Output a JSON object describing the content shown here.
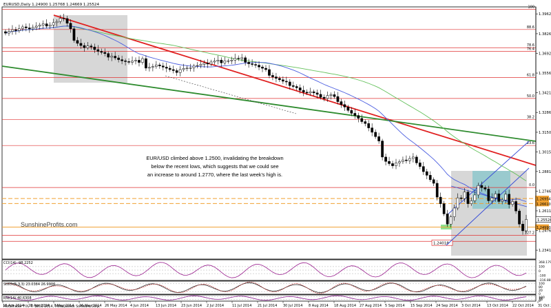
{
  "title": "EURUSD,Daily  1.24900 1.25768 1.24669 1.25524",
  "annotation": [
    "EUR/USD climbed above 1.2500, invalidating the breakdown",
    "below the recent lows, which suggests that we could see",
    "an increase to around 1.2770, where the last week's high is."
  ],
  "watermark": "SunshineProfits.com",
  "copyright": "MetaTrader FIX, © 2001-2014, MetaQuotes Software Corp.",
  "indicators": {
    "cci_label": "CCI(14) -98.2252",
    "cci_axis": [
      "368.1795",
      "100",
      "0",
      "-100",
      "-316.8855"
    ],
    "stoch_label": "Stoch(5,3,3) 23.0384 26.9906",
    "stoch_axis": [
      "100",
      "80",
      "20",
      "0"
    ],
    "rsi_label": "RSI(14) 40.6308",
    "rsi_axis": [
      "100",
      "70",
      "30",
      "0"
    ]
  },
  "chart_data": {
    "type": "candlestick",
    "symbol": "EURUSD",
    "timeframe": "Daily",
    "ohlc_last": {
      "open": 1.249,
      "high": 1.25768,
      "low": 1.24669,
      "close": 1.25524
    },
    "x_labels": [
      "18 Apr 2014",
      "28 Apr 2014",
      "7 May 2014",
      "16 May 2014",
      "26 May 2014",
      "4 Jun 2014",
      "13 Jun 2014",
      "23 Jun 2014",
      "2 Jul 2014",
      "11 Jul 2014",
      "21 Jul 2014",
      "30 Jul 2014",
      "8 Aug 2014",
      "18 Aug 2014",
      "27 Aug 2014",
      "5 Sep 2014",
      "15 Sep 2014",
      "24 Sep 2014",
      "3 Oct 2014",
      "13 Oct 2014",
      "22 Oct 2014",
      "31 Oct 2014"
    ],
    "y_ticks": [
      1.3962,
      1.3826,
      1.3692,
      1.3556,
      1.3421,
      1.3286,
      1.315,
      1.3015,
      1.2881,
      1.2746,
      1.2611,
      1.2476,
      1.2341
    ],
    "y_tick_labels": [
      "1.39620",
      "1.38265",
      "1.36920",
      "1.35560",
      "1.34210",
      "1.32860",
      "1.31505",
      "1.30150",
      "1.28810",
      "1.27460",
      "1.26110",
      "1.24760",
      "1.23410"
    ],
    "price_tag": "1.25524",
    "fib_levels": [
      {
        "label": "100",
        "value": 1.3993
      },
      {
        "label": "88.6",
        "value": 1.3855
      },
      {
        "label": "78.6",
        "value": 1.373
      },
      {
        "label": "76.4",
        "value": 1.3705
      },
      {
        "label": "61.8",
        "value": 1.3526
      },
      {
        "label": "50.0",
        "value": 1.3382
      },
      {
        "label": "38.2",
        "value": 1.3238
      },
      {
        "label": "23.6",
        "value": 1.3059
      },
      {
        "label": "0.0",
        "value": 1.2771
      },
      {
        "label": "127.2",
        "value": 1.2443
      }
    ],
    "orange_levels": [
      {
        "label": "1.26954",
        "value": 1.26954
      },
      {
        "label": "1.26610",
        "value": 1.2661
      },
      {
        "label": "1.24990",
        "value": 1.2499
      }
    ],
    "low_label": "1.24018",
    "low_value": 1.24018,
    "closes": [
      1.383,
      1.3842,
      1.3854,
      1.3847,
      1.3861,
      1.3873,
      1.3866,
      1.3859,
      1.387,
      1.3878,
      1.3886,
      1.3894,
      1.3878,
      1.3886,
      1.3902,
      1.391,
      1.3932,
      1.393,
      1.3898,
      1.386,
      1.378,
      1.376,
      1.3745,
      1.373,
      1.3742,
      1.3735,
      1.3717,
      1.3705,
      1.3698,
      1.369,
      1.3665,
      1.3672,
      1.366,
      1.3648,
      1.364,
      1.3635,
      1.363,
      1.3639,
      1.3644,
      1.3629,
      1.3655,
      1.359,
      1.3595,
      1.3601,
      1.3612,
      1.3605,
      1.3597,
      1.3589,
      1.358,
      1.3573,
      1.356,
      1.358,
      1.3588,
      1.359,
      1.3592,
      1.3604,
      1.3608,
      1.3616,
      1.3625,
      1.3618,
      1.3632,
      1.3638,
      1.3645,
      1.3626,
      1.364,
      1.364,
      1.3645,
      1.3658,
      1.3654,
      1.3661,
      1.363,
      1.362,
      1.3615,
      1.361,
      1.3598,
      1.3589,
      1.358,
      1.354,
      1.353,
      1.352,
      1.351,
      1.35,
      1.3495,
      1.347,
      1.3464,
      1.3455,
      1.3438,
      1.3425,
      1.342,
      1.3428,
      1.342,
      1.341,
      1.339,
      1.3382,
      1.3402,
      1.3408,
      1.3395,
      1.336,
      1.334,
      1.3323,
      1.33,
      1.328,
      1.3265,
      1.3245,
      1.3223,
      1.321,
      1.318,
      1.315,
      1.312,
      1.309,
      1.298,
      1.295,
      1.2935,
      1.292,
      1.294,
      1.2948,
      1.296,
      1.2955,
      1.297,
      1.298,
      1.294,
      1.2915,
      1.288,
      1.2855,
      1.2825,
      1.28,
      1.2705,
      1.266,
      1.259,
      1.252,
      1.257,
      1.263,
      1.27,
      1.2695,
      1.274,
      1.266,
      1.268,
      1.272,
      1.2785,
      1.277,
      1.276,
      1.268,
      1.27,
      1.2728,
      1.2675,
      1.2685,
      1.2725,
      1.2655,
      1.2675,
      1.261,
      1.252,
      1.2474,
      1.2552
    ]
  }
}
